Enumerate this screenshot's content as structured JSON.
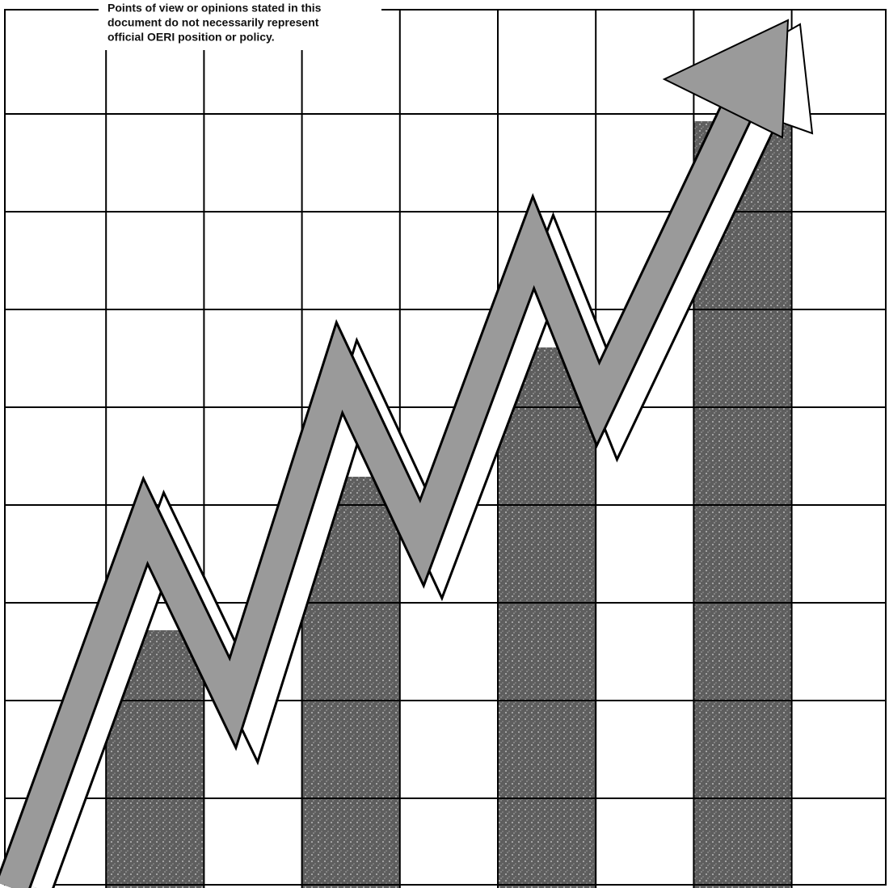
{
  "notice": {
    "lines": [
      "Points of view or opinions stated in this",
      "document do not necessarily represent",
      "official OERI position or policy."
    ]
  }
}
